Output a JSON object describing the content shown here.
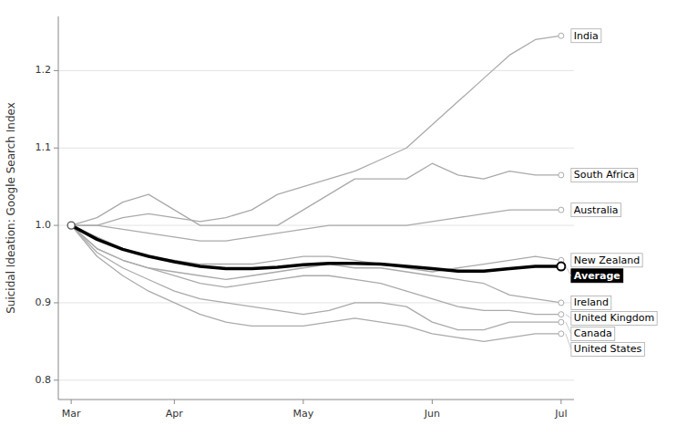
{
  "chart_data": {
    "type": "line",
    "ylabel": "Suicidal Ideation: Google Search Index",
    "categories": [
      "Mar",
      null,
      null,
      null,
      "Apr",
      null,
      null,
      null,
      null,
      "May",
      null,
      null,
      null,
      null,
      "Jun",
      null,
      null,
      null,
      null,
      "Jul"
    ],
    "ylim": [
      0.775,
      1.27
    ],
    "yticks": [
      0.8,
      0.9,
      {
        "value": 1.0,
        "label": "1.0"
      },
      1.1,
      1.2
    ],
    "grid": true,
    "series": [
      {
        "name": "India",
        "color": "#aaaaaa",
        "values": [
          1.0,
          1.0,
          1.01,
          1.015,
          1.01,
          1.005,
          1.01,
          1.02,
          1.04,
          1.05,
          1.06,
          1.07,
          1.085,
          1.1,
          1.13,
          1.16,
          1.19,
          1.22,
          1.24,
          1.245
        ]
      },
      {
        "name": "South Africa",
        "color": "#aaaaaa",
        "values": [
          1.0,
          1.01,
          1.03,
          1.04,
          1.02,
          1.0,
          1.0,
          1.0,
          1.0,
          1.02,
          1.04,
          1.06,
          1.06,
          1.06,
          1.08,
          1.065,
          1.06,
          1.07,
          1.065,
          1.065
        ]
      },
      {
        "name": "Australia",
        "color": "#aaaaaa",
        "values": [
          1.0,
          1.0,
          0.995,
          0.99,
          0.985,
          0.98,
          0.98,
          0.985,
          0.99,
          0.995,
          1.0,
          1.0,
          1.0,
          1.0,
          1.005,
          1.01,
          1.015,
          1.02,
          1.02,
          1.02
        ]
      },
      {
        "name": "New Zealand",
        "color": "#aaaaaa",
        "values": [
          1.0,
          0.985,
          0.97,
          0.96,
          0.955,
          0.95,
          0.95,
          0.95,
          0.955,
          0.96,
          0.96,
          0.955,
          0.95,
          0.945,
          0.94,
          0.945,
          0.95,
          0.955,
          0.96,
          0.955
        ]
      },
      {
        "name": "Ireland",
        "color": "#aaaaaa",
        "values": [
          1.0,
          0.97,
          0.955,
          0.945,
          0.94,
          0.935,
          0.93,
          0.935,
          0.94,
          0.945,
          0.95,
          0.945,
          0.945,
          0.94,
          0.935,
          0.93,
          0.925,
          0.91,
          0.905,
          0.9
        ]
      },
      {
        "name": "United Kingdom",
        "color": "#aaaaaa",
        "values": [
          1.0,
          0.97,
          0.955,
          0.945,
          0.935,
          0.925,
          0.92,
          0.925,
          0.93,
          0.935,
          0.935,
          0.93,
          0.925,
          0.915,
          0.905,
          0.895,
          0.89,
          0.89,
          0.885,
          0.885
        ]
      },
      {
        "name": "Canada",
        "color": "#aaaaaa",
        "values": [
          1.0,
          0.965,
          0.945,
          0.93,
          0.915,
          0.905,
          0.9,
          0.895,
          0.89,
          0.885,
          0.89,
          0.9,
          0.9,
          0.895,
          0.875,
          0.865,
          0.865,
          0.875,
          0.875,
          0.875
        ]
      },
      {
        "name": "United States",
        "color": "#aaaaaa",
        "values": [
          1.0,
          0.96,
          0.935,
          0.915,
          0.9,
          0.885,
          0.875,
          0.87,
          0.87,
          0.87,
          0.875,
          0.88,
          0.875,
          0.87,
          0.86,
          0.855,
          0.85,
          0.855,
          0.86,
          0.86
        ]
      },
      {
        "name": "Average",
        "color": "#000000",
        "values": [
          1.0,
          0.982,
          0.969,
          0.96,
          0.953,
          0.947,
          0.944,
          0.944,
          0.946,
          0.949,
          0.951,
          0.951,
          0.95,
          0.947,
          0.944,
          0.941,
          0.941,
          0.944,
          0.947,
          0.947
        ]
      }
    ]
  }
}
